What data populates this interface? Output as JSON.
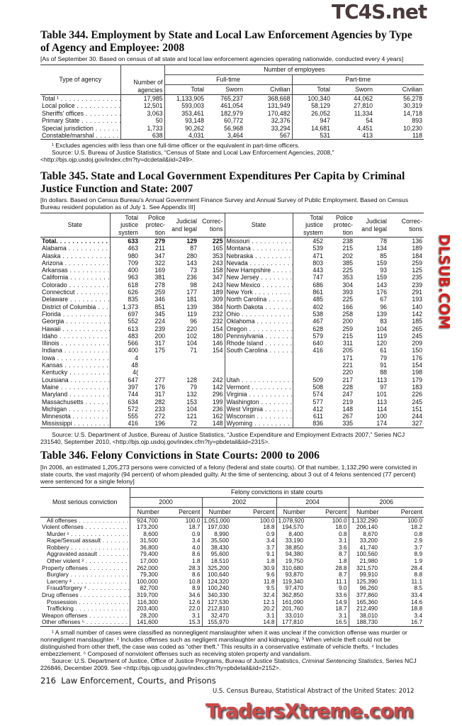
{
  "watermarks": {
    "top": "TC4S.net",
    "middle": "DLSUB.COM",
    "bottom": "TradersXtreme.com"
  },
  "t344": {
    "title": "Table 344. Employment by State and Local Law Enforcement Agencies by Type of Agency and Employee: 2008",
    "headnote": "[As of September 30. Based on census of all state and local law enforcement agencies operating nationwide, conducted every 4 years]",
    "headers": {
      "type": "Type of agency",
      "agencies": "Number of agencies",
      "employees": "Number of employees",
      "fulltime": "Full-time",
      "parttime": "Part-time",
      "total": "Total",
      "sworn": "Sworn",
      "civilian": "Civilian"
    },
    "rows": [
      {
        "label": "Total ¹",
        "bold": true,
        "values": [
          "17,985",
          "1,133,905",
          "765,237",
          "368,668",
          "100,340",
          "44,062",
          "56,278"
        ]
      },
      {
        "label": "Local police",
        "values": [
          "12,501",
          "593,003",
          "461,054",
          "131,949",
          "58,129",
          "27,810",
          "30,319"
        ]
      },
      {
        "label": "Sheriffs' offices",
        "values": [
          "3,063",
          "353,461",
          "182,979",
          "170,482",
          "26,052",
          "11,334",
          "14,718"
        ]
      },
      {
        "label": "Primary State",
        "values": [
          "50",
          "93,148",
          "60,772",
          "32,376",
          "947",
          "54",
          "893"
        ]
      },
      {
        "label": "Special jurisdiction",
        "values": [
          "1,733",
          "90,262",
          "56,968",
          "33,294",
          "14,681",
          "4,451",
          "10,230"
        ]
      },
      {
        "label": "Constable/marshal",
        "values": [
          "638",
          "4,031",
          "3,464",
          "567",
          "531",
          "413",
          "118"
        ]
      }
    ],
    "footnote": "¹ Excludes agencies with less than one full-time officer or the equivalent in part-time officers.",
    "source": "Source: U.S. Bureau of Justice Statistics, “Census of State and Local Law Enforcement Agencies, 2008,” <http://bjs.ojp.usdoj.gov/index.cfm?ty=dcdetail&iid=249>."
  },
  "t345": {
    "title": "Table 345. State and Local Government Expenditures Per Capita by Criminal Justice Function and State: 2007",
    "headnote": "[In dollars. Based on Census Bureau's Annual Government Finance Survey and Annual Survey of Public Employment. Based on Census Bureau resident population as of July 1. See Appendix III]",
    "headers": {
      "state": "State",
      "total": "Total justice system",
      "police": "Police protec- tion",
      "judicial": "Judicial and legal",
      "corrections": "Correc- tions"
    },
    "rows": [
      {
        "l": [
          "Total.",
          "633",
          "279",
          "129",
          "225"
        ],
        "bold": true,
        "r": [
          "Missouri",
          "452",
          "238",
          "78",
          "136"
        ]
      },
      {
        "l": [
          "Alabama",
          "463",
          "211",
          "87",
          "165"
        ],
        "r": [
          "Montana",
          "539",
          "215",
          "134",
          "189"
        ]
      },
      {
        "l": [
          "Alaska",
          "980",
          "347",
          "280",
          "353"
        ],
        "r": [
          "Nebraska",
          "471",
          "202",
          "85",
          "184"
        ]
      },
      {
        "l": [
          "Arizona",
          "709",
          "322",
          "143",
          "243"
        ],
        "r": [
          "Nevada",
          "803",
          "385",
          "159",
          "259"
        ]
      },
      {
        "l": [
          "Arkansas",
          "400",
          "169",
          "73",
          "158"
        ],
        "r": [
          "New Hampshire",
          "443",
          "225",
          "93",
          "125"
        ]
      },
      {
        "l": [
          "California",
          "963",
          "381",
          "236",
          "347"
        ],
        "r": [
          "New Jersey",
          "747",
          "353",
          "159",
          "235"
        ]
      },
      {
        "l": [
          "Colorado",
          "618",
          "278",
          "98",
          "243"
        ],
        "r": [
          "New Mexico",
          "686",
          "304",
          "143",
          "239"
        ]
      },
      {
        "l": [
          "Connecticut",
          "626",
          "259",
          "177",
          "189"
        ],
        "r": [
          "New York",
          "861",
          "393",
          "176",
          "291"
        ]
      },
      {
        "l": [
          "Delaware",
          "835",
          "346",
          "181",
          "309"
        ],
        "r": [
          "North Carolina",
          "485",
          "225",
          "67",
          "193"
        ]
      },
      {
        "l": [
          "District of Columbia",
          "1,373",
          "851",
          "139",
          "384"
        ],
        "r": [
          "North Dakota",
          "402",
          "166",
          "96",
          "140"
        ]
      },
      {
        "l": [
          "Florida",
          "697",
          "345",
          "119",
          "232"
        ],
        "r": [
          "Ohio",
          "538",
          "258",
          "139",
          "142"
        ]
      },
      {
        "l": [
          "Georgia",
          "552",
          "224",
          "96",
          "232"
        ],
        "r": [
          "Oklahoma",
          "467",
          "200",
          "83",
          "185"
        ]
      },
      {
        "l": [
          "Hawaii",
          "613",
          "239",
          "220",
          "154"
        ],
        "r": [
          "Oregon",
          "628",
          "259",
          "104",
          "265"
        ]
      },
      {
        "l": [
          "Idaho",
          "483",
          "200",
          "102",
          "180"
        ],
        "r": [
          "Pennsylvania",
          "579",
          "215",
          "119",
          "245"
        ]
      },
      {
        "l": [
          "Illinois",
          "566",
          "317",
          "104",
          "146"
        ],
        "r": [
          "Rhode Island",
          "640",
          "311",
          "120",
          "209"
        ]
      },
      {
        "l": [
          "Indiana",
          "400",
          "175",
          "71",
          "154"
        ],
        "r": [
          "South Carolina",
          "416",
          "205",
          "61",
          "150"
        ]
      },
      {
        "l": [
          "Iowa",
          "4",
          "",
          "",
          ""
        ],
        "r": [
          "",
          "",
          "171",
          "79",
          "176"
        ]
      },
      {
        "l": [
          "Kansas",
          "48",
          "",
          "",
          ""
        ],
        "r": [
          "",
          "",
          "221",
          "91",
          "154"
        ]
      },
      {
        "l": [
          "Kentucky",
          "4(",
          "",
          "",
          ""
        ],
        "r": [
          "",
          "",
          "220",
          "88",
          "198"
        ]
      },
      {
        "l": [
          "Louisiana",
          "647",
          "277",
          "128",
          "242"
        ],
        "r": [
          "Utah",
          "509",
          "217",
          "113",
          "179"
        ]
      },
      {
        "l": [
          "Maine",
          "397",
          "176",
          "79",
          "142"
        ],
        "r": [
          "Vermont",
          "508",
          "228",
          "97",
          "183"
        ]
      },
      {
        "l": [
          "Maryland",
          "744",
          "317",
          "132",
          "296"
        ],
        "r": [
          "Virginia",
          "574",
          "247",
          "101",
          "226"
        ]
      },
      {
        "l": [
          "Massachusetts",
          "634",
          "282",
          "153",
          "199"
        ],
        "r": [
          "Washington",
          "577",
          "219",
          "113",
          "245"
        ]
      },
      {
        "l": [
          "Michigan",
          "572",
          "233",
          "104",
          "236"
        ],
        "r": [
          "West Virginia",
          "412",
          "148",
          "114",
          "151"
        ]
      },
      {
        "l": [
          "Minnesota",
          "555",
          "272",
          "121",
          "162"
        ],
        "r": [
          "Wisconsin",
          "611",
          "267",
          "100",
          "244"
        ]
      },
      {
        "l": [
          "Mississippi",
          "416",
          "196",
          "72",
          "148"
        ],
        "r": [
          "Wyoming",
          "836",
          "335",
          "174",
          "327"
        ]
      }
    ],
    "source": "Source: U.S. Department of Justice, Bureau of Justice Statistics, “Justice Expenditure and Employment Extracts 2007,” Series NCJ 231540, September 2010, <http://bjs.ojp.usdoj.gov/index.cfm?ty=pbdetail&iid=2315>."
  },
  "t346": {
    "title": "Table 346. Felony Convictions in State Courts: 2000 to 2006",
    "headnote": "[In 2006, an estimated 1,205,273 persons were convicted of a felony (federal and state courts). Of that number, 1,132,290 were convicted in state courts, the vast majority (94 percent) of whom pleaded guilty. At the time of sentencing, about 3 out of 4 felons sentenced (77 percent) were sentenced for a single felony]",
    "headers": {
      "conviction": "Most serious conviction",
      "group": "Felony convictions in state courts",
      "years": [
        "2000",
        "2002",
        "2004",
        "2006"
      ],
      "number": "Number",
      "percent": "Percent"
    },
    "rows": [
      {
        "label": "All offenses",
        "indent": 1,
        "values": [
          "924,700",
          "100.0",
          "1,051,000",
          "100.0",
          "1,078,920",
          "100.0",
          "1,132,290",
          "100.0"
        ]
      },
      {
        "label": "Violent offenses",
        "indent": 0,
        "values": [
          "173,200",
          "18.7",
          "197,030",
          "18.8",
          "194,570",
          "18.0",
          "206,140",
          "18.2"
        ]
      },
      {
        "label": "Murder ¹",
        "indent": 1,
        "values": [
          "8,600",
          "0.9",
          "8,990",
          "0.9",
          "8,400",
          "0.8",
          "8,670",
          "0.8"
        ]
      },
      {
        "label": "Rape/Sexual assault",
        "indent": 1,
        "values": [
          "31,500",
          "3.4",
          "35,500",
          "3.4",
          "33,190",
          "3.1",
          "33,200",
          "2.9"
        ]
      },
      {
        "label": "Robbery",
        "indent": 1,
        "values": [
          "36,800",
          "4.0",
          "38,430",
          "3.7",
          "38,850",
          "3.6",
          "41,740",
          "3.7"
        ]
      },
      {
        "label": "Aggravated assault",
        "indent": 1,
        "values": [
          "79,400",
          "8.6",
          "95,600",
          "9.1",
          "94,380",
          "8.7",
          "100,560",
          "8.9"
        ]
      },
      {
        "label": "Other violent ²",
        "indent": 1,
        "values": [
          "17,000",
          "1.8",
          "18,510",
          "1.8",
          "19,750",
          "1.8",
          "21,980",
          "1.9"
        ]
      },
      {
        "label": "Property offenses",
        "indent": 0,
        "values": [
          "262,000",
          "28.3",
          "325,200",
          "30.9",
          "310,680",
          "28.8",
          "321,570",
          "28.4"
        ]
      },
      {
        "label": "Burglary",
        "indent": 1,
        "values": [
          "79,300",
          "8.6",
          "100,640",
          "9.6",
          "93,870",
          "8.7",
          "99,910",
          "8.8"
        ]
      },
      {
        "label": "Larceny ³",
        "indent": 1,
        "values": [
          "100,000",
          "10.8",
          "124,320",
          "11.8",
          "119,340",
          "11.1",
          "125,390",
          "11.1"
        ]
      },
      {
        "label": "Fraud/forgery ⁴",
        "indent": 1,
        "values": [
          "82,700",
          "8.9",
          "100,240",
          "9.5",
          "97,470",
          "9.0",
          "96,260",
          "8.5"
        ]
      },
      {
        "label": "Drug offenses",
        "indent": 0,
        "values": [
          "319,700",
          "34.6",
          "340,330",
          "32.4",
          "362,850",
          "33.6",
          "377,860",
          "33.4"
        ]
      },
      {
        "label": "Possession",
        "indent": 1,
        "values": [
          "116,300",
          "12.6",
          "127,530",
          "12.1",
          "161,090",
          "14.9",
          "165,360",
          "14.6"
        ]
      },
      {
        "label": "Trafficking",
        "indent": 1,
        "values": [
          "203,400",
          "22.0",
          "212,810",
          "20.2",
          "201,760",
          "18.7",
          "212,490",
          "18.8"
        ]
      },
      {
        "label": "Weapon offenses",
        "indent": 0,
        "values": [
          "28,200",
          "3.1",
          "32,470",
          "3.1",
          "33,010",
          "3.1",
          "38,010",
          "3.4"
        ]
      },
      {
        "label": "Other offenses ⁵",
        "indent": 0,
        "values": [
          "141,600",
          "15.3",
          "155,970",
          "14.8",
          "177,810",
          "16.5",
          "188,730",
          "16.7"
        ]
      }
    ],
    "footnotes": "¹ A small number of cases were classified as nonnegligent manslaughter when it was unclear if the conviction offense was murder or nonnegligent manslaughter. ² Includes offenses such as negligent manslaughter and kidnapping. ³ When vehicle theft could not be distinguished from other theft, the case was coded as “other theft.”  This results in a conservative estimate of vehicle thefts. ⁴ Includes embezzlement. ⁵ Composed of nonviolent offenses such as receiving stolen property and vandalism.",
    "source_pre": "Source: U.S. Department of Justice, Office of Justice Programs, Bureau of Justice Statistics, ",
    "source_title": "Criminal Sentencing Statistics,",
    "source_post": " Series NCJ 226846, December 2009. See <http://bjs.ojp.usdoj.gov/index.cfm?ty=pbdetail&iid=2152>."
  },
  "footer": {
    "page": "216",
    "chapter": "Law Enforcement, Courts, and Prisons",
    "publication": "U.S. Census Bureau, Statistical Abstract of the United States: 2012"
  }
}
